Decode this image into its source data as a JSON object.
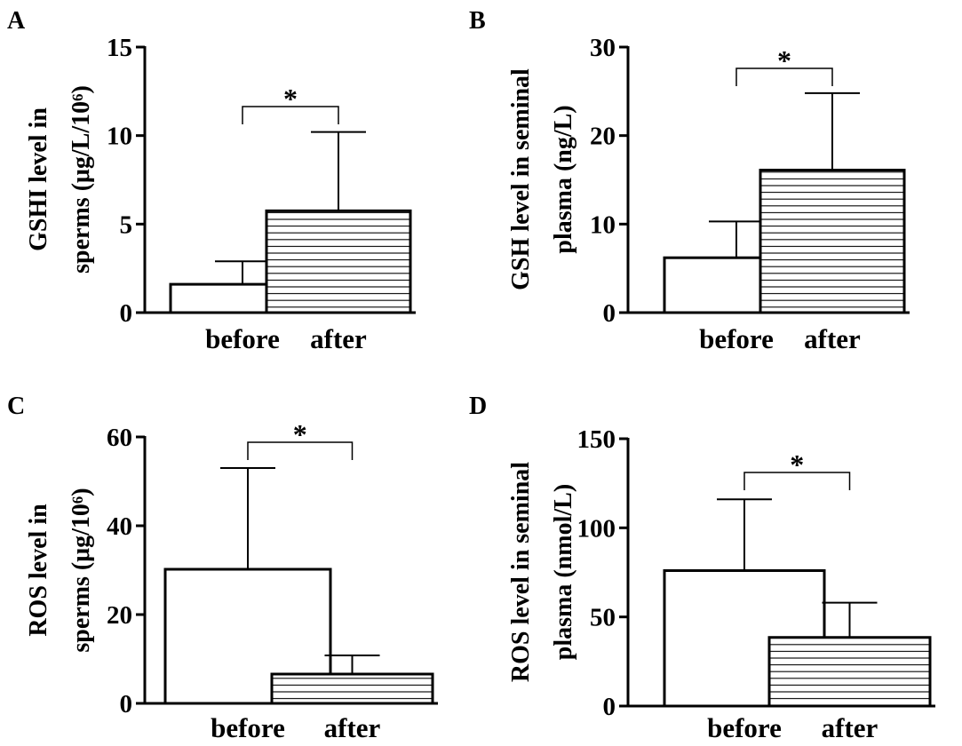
{
  "chart_data": [
    {
      "panel": "A",
      "type": "bar",
      "categories": [
        "before",
        "after"
      ],
      "values": [
        1.6,
        5.75
      ],
      "errors": [
        1.3,
        4.45
      ],
      "bar_patterns": [
        "none",
        "horizontal-lines"
      ],
      "ylabel_lines": [
        "GSHI level in",
        "sperms (μg/L/10⁶)"
      ],
      "yticks": [
        0,
        5,
        10,
        15
      ],
      "ylim": [
        0,
        15
      ],
      "significance": "*"
    },
    {
      "panel": "B",
      "type": "bar",
      "categories": [
        "before",
        "after"
      ],
      "values": [
        6.2,
        16.1
      ],
      "errors": [
        4.1,
        8.7
      ],
      "bar_patterns": [
        "none",
        "horizontal-lines"
      ],
      "ylabel_lines": [
        "GSH level in seminal",
        "plasma (ng/L)"
      ],
      "yticks": [
        0,
        10,
        20,
        30
      ],
      "ylim": [
        0,
        30
      ],
      "significance": "*"
    },
    {
      "panel": "C",
      "type": "bar",
      "categories": [
        "before",
        "after"
      ],
      "values": [
        30.2,
        6.6
      ],
      "errors": [
        22.8,
        4.2
      ],
      "bar_patterns": [
        "none",
        "horizontal-lines"
      ],
      "ylabel_lines": [
        "ROS level  in",
        "sperms (μg/10⁶)"
      ],
      "yticks": [
        0,
        20,
        40,
        60
      ],
      "ylim": [
        0,
        60
      ],
      "significance": "*"
    },
    {
      "panel": "D",
      "type": "bar",
      "categories": [
        "before",
        "after"
      ],
      "values": [
        76,
        38.5
      ],
      "errors": [
        40,
        19.5
      ],
      "bar_patterns": [
        "none",
        "horizontal-lines"
      ],
      "ylabel_lines": [
        "ROS level in seminal",
        "plasma (nmol/L)"
      ],
      "yticks": [
        0,
        50,
        100,
        150
      ],
      "ylim": [
        0,
        150
      ],
      "significance": "*"
    }
  ]
}
